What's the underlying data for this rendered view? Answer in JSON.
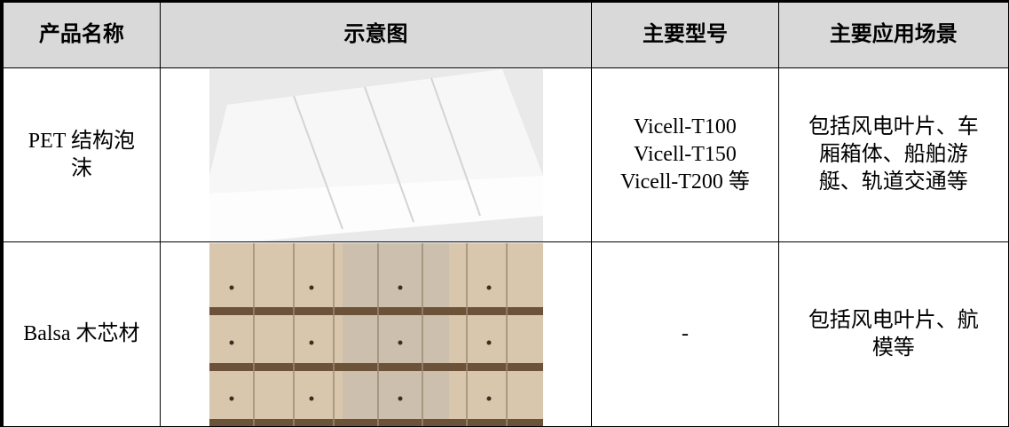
{
  "table": {
    "header": [
      "产品名称",
      "示意图",
      "主要型号",
      "主要应用场景"
    ],
    "rows": [
      {
        "name": "PET 结构泡沫",
        "models": [
          "Vicell-T100",
          "Vicell-T150",
          "Vicell-T200 等"
        ],
        "applications": "包括风电叶片、车厢箱体、船舶游艇、轨道交通等"
      },
      {
        "name": "Balsa 木芯材",
        "models": [
          "-"
        ],
        "applications": "包括风电叶片、航模等"
      }
    ]
  }
}
